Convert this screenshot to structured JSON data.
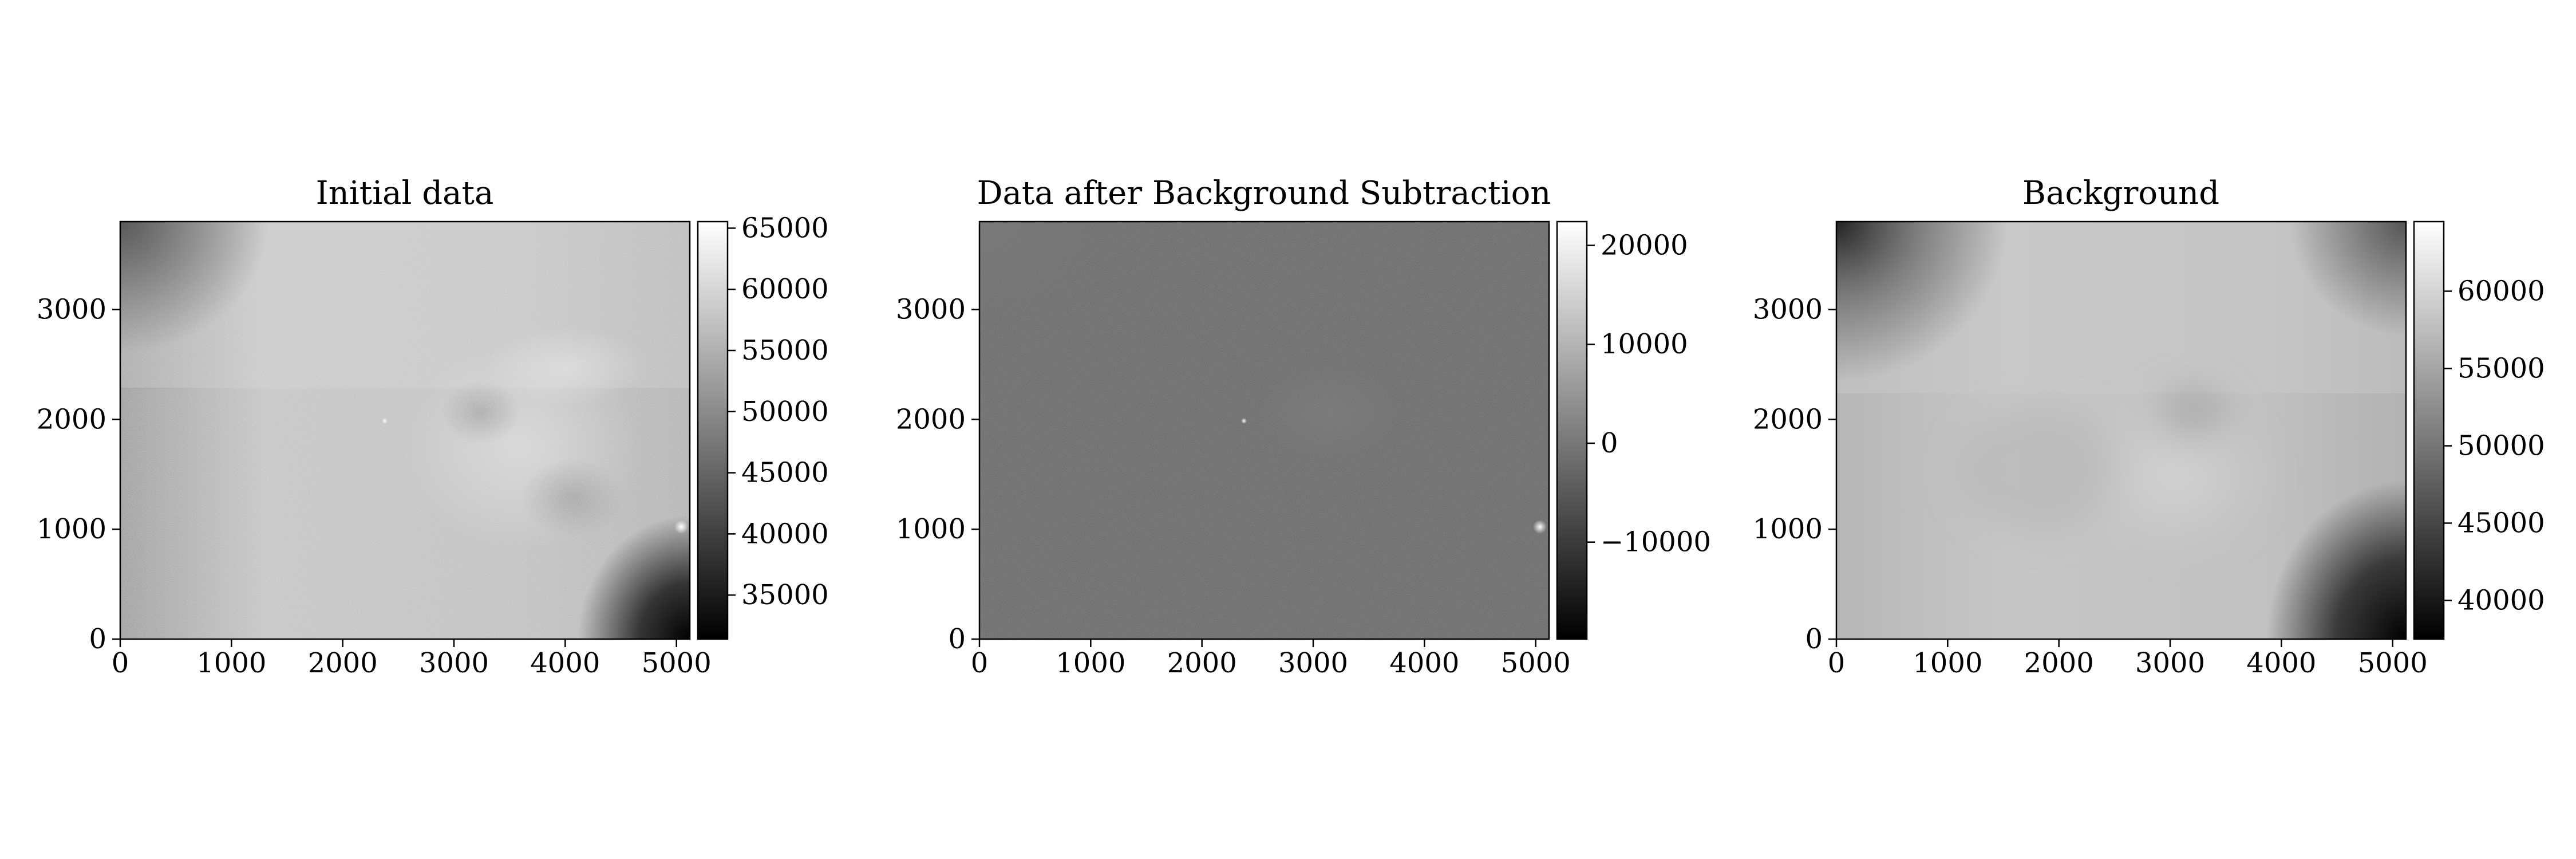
{
  "figure": {
    "background": "#ffffff"
  },
  "chart_data": [
    {
      "type": "heatmap",
      "title": "Initial data",
      "colormap": "gray",
      "xlim": [
        0,
        5120
      ],
      "ylim": [
        0,
        3800
      ],
      "x_ticks": [
        0,
        1000,
        2000,
        3000,
        4000,
        5000
      ],
      "x_tick_labels": [
        "0",
        "1000",
        "2000",
        "3000",
        "4000",
        "5000"
      ],
      "y_ticks": [
        0,
        1000,
        2000,
        3000
      ],
      "y_tick_labels": [
        "0",
        "1000",
        "2000",
        "3000"
      ],
      "colorbar": {
        "range": [
          31400,
          65535
        ],
        "ticks": [
          35000,
          40000,
          45000,
          50000,
          55000,
          60000,
          65000
        ],
        "tick_labels": [
          "35000",
          "40000",
          "45000",
          "50000",
          "55000",
          "60000",
          "65000"
        ]
      }
    },
    {
      "type": "heatmap",
      "title": "Data after Background Subtraction",
      "colormap": "gray",
      "xlim": [
        0,
        5120
      ],
      "ylim": [
        0,
        3800
      ],
      "x_ticks": [
        0,
        1000,
        2000,
        3000,
        4000,
        5000
      ],
      "x_tick_labels": [
        "0",
        "1000",
        "2000",
        "3000",
        "4000",
        "5000"
      ],
      "y_ticks": [
        0,
        1000,
        2000,
        3000
      ],
      "y_tick_labels": [
        "0",
        "1000",
        "2000",
        "3000"
      ],
      "colorbar": {
        "range": [
          -19800,
          22400
        ],
        "ticks": [
          -10000,
          0,
          10000,
          20000
        ],
        "tick_labels": [
          "−10000",
          "0",
          "10000",
          "20000"
        ]
      }
    },
    {
      "type": "heatmap",
      "title": "Background",
      "colormap": "gray",
      "xlim": [
        0,
        5120
      ],
      "ylim": [
        0,
        3800
      ],
      "x_ticks": [
        0,
        1000,
        2000,
        3000,
        4000,
        5000
      ],
      "x_tick_labels": [
        "0",
        "1000",
        "2000",
        "3000",
        "4000",
        "5000"
      ],
      "y_ticks": [
        0,
        1000,
        2000,
        3000
      ],
      "y_tick_labels": [
        "0",
        "1000",
        "2000",
        "3000"
      ],
      "colorbar": {
        "range": [
          37500,
          64500
        ],
        "ticks": [
          40000,
          45000,
          50000,
          55000,
          60000
        ],
        "tick_labels": [
          "40000",
          "45000",
          "50000",
          "55000",
          "60000"
        ]
      }
    }
  ]
}
